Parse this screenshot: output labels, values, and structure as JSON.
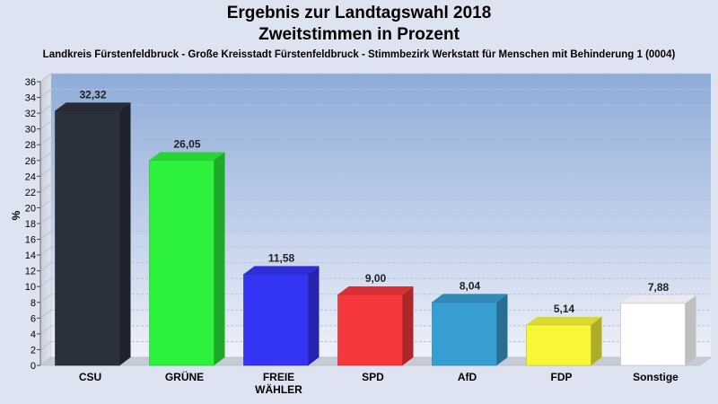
{
  "chart_data": {
    "type": "bar",
    "title": "Ergebnis zur Landtagswahl 2018",
    "subtitle": "Zweitstimmen in Prozent",
    "description": "Landkreis Fürstenfeldbruck - Große Kreisstadt Fürstenfeldbruck - Stimmbezirk Werkstatt für Menschen mit Behinderung 1 (0004)",
    "ylabel": "%",
    "xlabel": "",
    "ylim": [
      0,
      36
    ],
    "yticks": [
      0,
      2,
      4,
      6,
      8,
      10,
      12,
      14,
      16,
      18,
      20,
      22,
      24,
      26,
      28,
      30,
      32,
      34,
      36
    ],
    "grid": true,
    "categories": [
      "CSU",
      "GRÜNE",
      "FREIE WÄHLER",
      "SPD",
      "AfD",
      "FDP",
      "Sonstige"
    ],
    "category_lines": [
      [
        "CSU"
      ],
      [
        "GRÜNE"
      ],
      [
        "FREIE",
        "WÄHLER"
      ],
      [
        "SPD"
      ],
      [
        "AfD"
      ],
      [
        "FDP"
      ],
      [
        "Sonstige"
      ]
    ],
    "values": [
      32.32,
      26.05,
      11.58,
      9.0,
      8.04,
      5.14,
      7.88
    ],
    "value_labels": [
      "32,32",
      "26,05",
      "11,58",
      "9,00",
      "8,04",
      "5,14",
      "7,88"
    ],
    "colors": [
      "#2b313c",
      "#2df23c",
      "#3434f5",
      "#f5383c",
      "#369ed1",
      "#f7f737",
      "#ffffff"
    ]
  }
}
